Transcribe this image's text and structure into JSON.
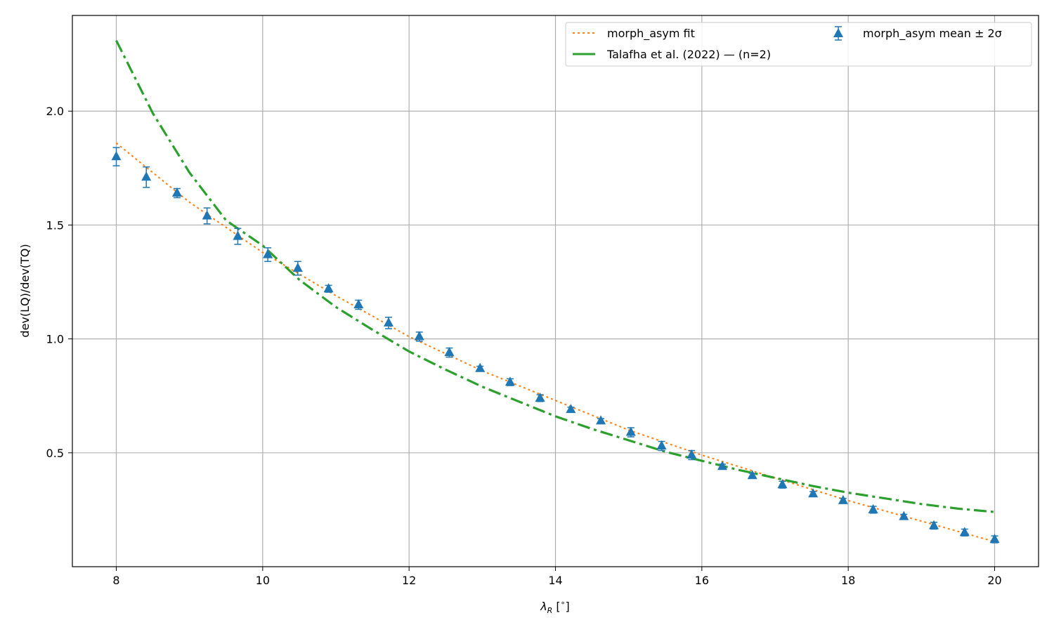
{
  "chart_data": {
    "type": "line",
    "xlabel": "λ_R [°]",
    "ylabel": "dev(LQ)/dev(TQ)",
    "xlim": [
      7.4,
      20.6
    ],
    "ylim": [
      0.0,
      2.42
    ],
    "xticks": [
      8,
      10,
      12,
      14,
      16,
      18,
      20
    ],
    "xtick_labels": [
      "8",
      "10",
      "12",
      "14",
      "16",
      "18",
      "20"
    ],
    "yticks": [
      0.5,
      1.0,
      1.5,
      2.0
    ],
    "ytick_labels": [
      "0.5",
      "1.0",
      "1.5",
      "2.0"
    ],
    "grid": true,
    "legend_position": "top-right",
    "series": [
      {
        "name": "morph_asym fit",
        "style": "dotted",
        "color": "#ff7f0e",
        "x": [
          8,
          9,
          10,
          11,
          12,
          13,
          14,
          15,
          16,
          17,
          18,
          19,
          20
        ],
        "y": [
          1.86,
          1.6,
          1.38,
          1.19,
          1.01,
          0.86,
          0.73,
          0.6,
          0.49,
          0.39,
          0.29,
          0.2,
          0.11
        ]
      },
      {
        "name": "Talafha et al. (2022) — (n=2)",
        "style": "dashdot",
        "color": "#2ca02c",
        "x": [
          8,
          8.5,
          9,
          9.5,
          10,
          10.5,
          11,
          11.5,
          12,
          12.5,
          13,
          13.5,
          14,
          14.5,
          15,
          15.5,
          16,
          16.5,
          17,
          17.5,
          18,
          18.5,
          19,
          19.5,
          20
        ],
        "y": [
          2.31,
          1.99,
          1.73,
          1.52,
          1.41,
          1.26,
          1.14,
          1.04,
          0.945,
          0.865,
          0.79,
          0.725,
          0.66,
          0.605,
          0.555,
          0.505,
          0.465,
          0.425,
          0.39,
          0.355,
          0.325,
          0.3,
          0.275,
          0.255,
          0.24
        ]
      },
      {
        "name": "morph_asym mean ± 2σ",
        "style": "markers",
        "marker": "triangle",
        "color": "#1f77b4",
        "x": [
          8.0,
          8.41,
          8.83,
          9.24,
          9.66,
          10.07,
          10.48,
          10.9,
          11.31,
          11.72,
          12.14,
          12.55,
          12.97,
          13.38,
          13.79,
          14.21,
          14.62,
          15.03,
          15.45,
          15.86,
          16.28,
          16.69,
          17.1,
          17.52,
          17.93,
          18.34,
          18.76,
          19.17,
          19.59,
          20.0
        ],
        "y": [
          1.8,
          1.71,
          1.64,
          1.54,
          1.45,
          1.37,
          1.31,
          1.22,
          1.15,
          1.07,
          1.01,
          0.94,
          0.87,
          0.81,
          0.74,
          0.69,
          0.64,
          0.59,
          0.53,
          0.49,
          0.44,
          0.4,
          0.36,
          0.32,
          0.29,
          0.25,
          0.22,
          0.18,
          0.15,
          0.12
        ],
        "err": [
          0.04,
          0.045,
          0.02,
          0.035,
          0.035,
          0.03,
          0.03,
          0.015,
          0.02,
          0.025,
          0.02,
          0.02,
          0.01,
          0.015,
          0.015,
          0.01,
          0.01,
          0.02,
          0.02,
          0.02,
          0.01,
          0.01,
          0.015,
          0.01,
          0.01,
          0.015,
          0.01,
          0.015,
          0.015,
          0.015
        ]
      }
    ]
  }
}
